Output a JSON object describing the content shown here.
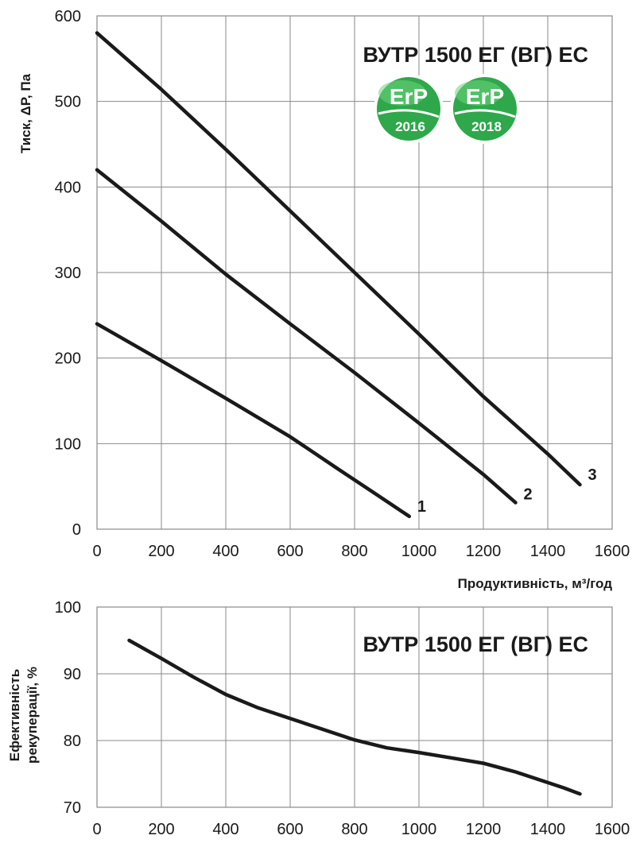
{
  "chart_data": [
    {
      "type": "line",
      "title": "ВУТР 1500 ЕГ (ВГ) ЕС",
      "xlabel": "Продуктивність, м³/год",
      "ylabel": "Тиск, ΔP, Па",
      "xlim": [
        0,
        1600
      ],
      "ylim": [
        0,
        600
      ],
      "x_ticks": [
        "0",
        "200",
        "400",
        "600",
        "800",
        "1000",
        "1200",
        "1400",
        "1600"
      ],
      "y_ticks": [
        "0",
        "100",
        "200",
        "300",
        "400",
        "500",
        "600"
      ],
      "grid": true,
      "series": [
        {
          "name": "1",
          "x": [
            0,
            200,
            400,
            600,
            750,
            850,
            970
          ],
          "y": [
            240,
            197,
            153,
            108,
            70,
            45,
            15
          ]
        },
        {
          "name": "2",
          "x": [
            0,
            200,
            400,
            600,
            800,
            1000,
            1200,
            1300
          ],
          "y": [
            420,
            360,
            298,
            240,
            183,
            124,
            64,
            31
          ]
        },
        {
          "name": "3",
          "x": [
            0,
            200,
            400,
            600,
            800,
            1000,
            1200,
            1400,
            1500
          ],
          "y": [
            580,
            514,
            444,
            372,
            300,
            228,
            155,
            88,
            52
          ]
        }
      ],
      "badges": [
        {
          "top": "ErP",
          "bottom": "2016",
          "color": "#2ea84a"
        },
        {
          "top": "ErP",
          "bottom": "2018",
          "color": "#2ea84a"
        }
      ]
    },
    {
      "type": "line",
      "title": "ВУТР 1500 ЕГ (ВГ) ЕС",
      "xlabel": "",
      "ylabel": "Ефективність рекуперації, %",
      "ylabel_lines": [
        "Ефективність",
        "рекуперації, %"
      ],
      "xlim": [
        0,
        1600
      ],
      "ylim": [
        70,
        100
      ],
      "x_ticks": [
        "0",
        "200",
        "400",
        "600",
        "800",
        "1000",
        "1200",
        "1400",
        "1600"
      ],
      "y_ticks": [
        "70",
        "80",
        "90",
        "100"
      ],
      "grid": true,
      "series": [
        {
          "x": [
            100,
            200,
            300,
            400,
            500,
            600,
            700,
            800,
            900,
            1000,
            1100,
            1200,
            1300,
            1400,
            1450,
            1500
          ],
          "y": [
            95,
            92.3,
            89.5,
            86.9,
            84.9,
            83.3,
            81.7,
            80.1,
            78.9,
            78.2,
            77.4,
            76.6,
            75.3,
            73.7,
            72.9,
            72
          ]
        }
      ]
    }
  ]
}
